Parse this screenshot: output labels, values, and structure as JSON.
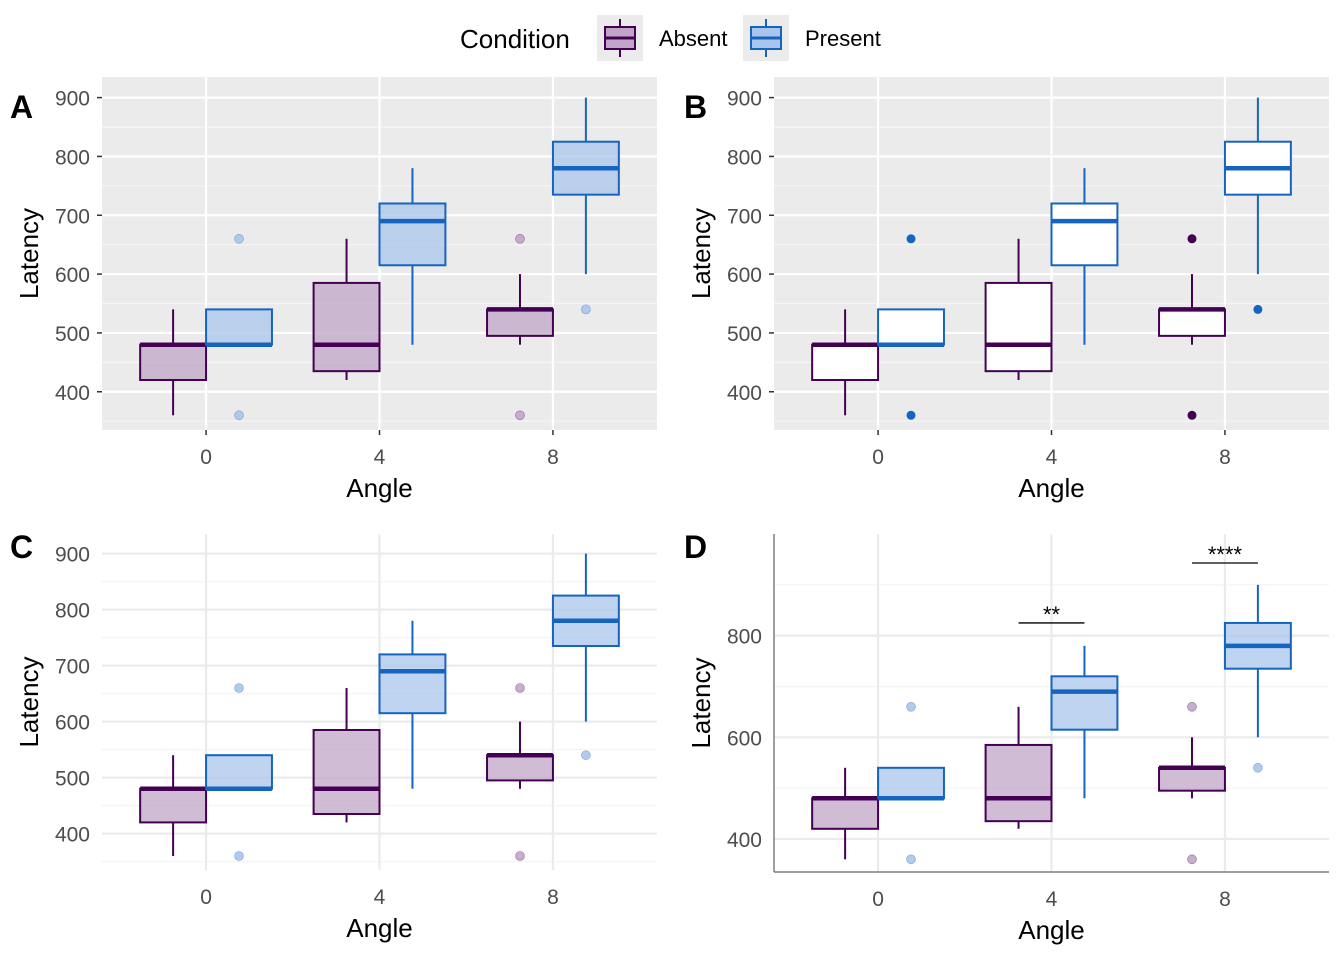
{
  "legend": {
    "title": "Condition",
    "items": [
      {
        "label": "Absent",
        "stroke": "#440154",
        "fill": "#C0A5C6"
      },
      {
        "label": "Present",
        "stroke": "#1565C0",
        "fill": "#A9C5EB"
      }
    ]
  },
  "panel_labels": [
    "A",
    "B",
    "C",
    "D"
  ],
  "chart_data": [
    {
      "type": "boxplot",
      "panel": "A",
      "theme": "grey-background",
      "xlabel": "Angle",
      "ylabel": "Latency",
      "categories": [
        "0",
        "4",
        "8"
      ],
      "ylim": [
        335,
        935
      ],
      "yticks": [
        400,
        500,
        600,
        700,
        800,
        900
      ],
      "grid": true,
      "box_fill": true,
      "series": [
        {
          "name": "Absent",
          "boxes": [
            {
              "x": "0",
              "min": 360,
              "q1": 420,
              "median": 480,
              "q3": 480,
              "max": 540,
              "outliers": []
            },
            {
              "x": "4",
              "min": 420,
              "q1": 435,
              "median": 480,
              "q3": 585,
              "max": 660,
              "outliers": []
            },
            {
              "x": "8",
              "min": 480,
              "q1": 495,
              "median": 540,
              "q3": 540,
              "max": 600,
              "outliers": [
                660,
                360
              ]
            }
          ]
        },
        {
          "name": "Present",
          "boxes": [
            {
              "x": "0",
              "min": 480,
              "q1": 480,
              "median": 480,
              "q3": 540,
              "max": 540,
              "outliers": [
                660,
                360
              ]
            },
            {
              "x": "4",
              "min": 480,
              "q1": 615,
              "median": 690,
              "q3": 720,
              "max": 780,
              "outliers": []
            },
            {
              "x": "8",
              "min": 600,
              "q1": 735,
              "median": 780,
              "q3": 825,
              "max": 900,
              "outliers": [
                540
              ]
            }
          ]
        }
      ]
    },
    {
      "type": "boxplot",
      "panel": "B",
      "theme": "grey-background",
      "xlabel": "Angle",
      "ylabel": "Latency",
      "categories": [
        "0",
        "4",
        "8"
      ],
      "ylim": [
        335,
        935
      ],
      "yticks": [
        400,
        500,
        600,
        700,
        800,
        900
      ],
      "grid": true,
      "box_fill": false,
      "series": [
        {
          "name": "Absent",
          "boxes": [
            {
              "x": "0",
              "min": 360,
              "q1": 420,
              "median": 480,
              "q3": 480,
              "max": 540,
              "outliers": []
            },
            {
              "x": "4",
              "min": 420,
              "q1": 435,
              "median": 480,
              "q3": 585,
              "max": 660,
              "outliers": []
            },
            {
              "x": "8",
              "min": 480,
              "q1": 495,
              "median": 540,
              "q3": 540,
              "max": 600,
              "outliers": [
                660,
                360
              ]
            }
          ]
        },
        {
          "name": "Present",
          "boxes": [
            {
              "x": "0",
              "min": 480,
              "q1": 480,
              "median": 480,
              "q3": 540,
              "max": 540,
              "outliers": [
                660,
                360
              ]
            },
            {
              "x": "4",
              "min": 480,
              "q1": 615,
              "median": 690,
              "q3": 720,
              "max": 780,
              "outliers": []
            },
            {
              "x": "8",
              "min": 600,
              "q1": 735,
              "median": 780,
              "q3": 825,
              "max": 900,
              "outliers": [
                540
              ]
            }
          ]
        }
      ]
    },
    {
      "type": "boxplot",
      "panel": "C",
      "theme": "minimal",
      "xlabel": "Angle",
      "ylabel": "Latency",
      "categories": [
        "0",
        "4",
        "8"
      ],
      "ylim": [
        335,
        935
      ],
      "yticks": [
        400,
        500,
        600,
        700,
        800,
        900
      ],
      "grid": true,
      "box_fill": true,
      "series": [
        {
          "name": "Absent",
          "boxes": [
            {
              "x": "0",
              "min": 360,
              "q1": 420,
              "median": 480,
              "q3": 480,
              "max": 540,
              "outliers": []
            },
            {
              "x": "4",
              "min": 420,
              "q1": 435,
              "median": 480,
              "q3": 585,
              "max": 660,
              "outliers": []
            },
            {
              "x": "8",
              "min": 480,
              "q1": 495,
              "median": 540,
              "q3": 540,
              "max": 600,
              "outliers": [
                660,
                360
              ]
            }
          ]
        },
        {
          "name": "Present",
          "boxes": [
            {
              "x": "0",
              "min": 480,
              "q1": 480,
              "median": 480,
              "q3": 540,
              "max": 540,
              "outliers": [
                660,
                360
              ]
            },
            {
              "x": "4",
              "min": 480,
              "q1": 615,
              "median": 690,
              "q3": 720,
              "max": 780,
              "outliers": []
            },
            {
              "x": "8",
              "min": 600,
              "q1": 735,
              "median": 780,
              "q3": 825,
              "max": 900,
              "outliers": [
                540
              ]
            }
          ]
        }
      ]
    },
    {
      "type": "boxplot",
      "panel": "D",
      "theme": "minimal-axes",
      "xlabel": "Angle",
      "ylabel": "Latency",
      "categories": [
        "0",
        "4",
        "8"
      ],
      "ylim": [
        335,
        1000
      ],
      "yticks": [
        400,
        600,
        800
      ],
      "grid": true,
      "box_fill": true,
      "series": [
        {
          "name": "Absent",
          "boxes": [
            {
              "x": "0",
              "min": 360,
              "q1": 420,
              "median": 480,
              "q3": 480,
              "max": 540,
              "outliers": []
            },
            {
              "x": "4",
              "min": 420,
              "q1": 435,
              "median": 480,
              "q3": 585,
              "max": 660,
              "outliers": []
            },
            {
              "x": "8",
              "min": 480,
              "q1": 495,
              "median": 540,
              "q3": 540,
              "max": 600,
              "outliers": [
                660,
                360
              ]
            }
          ]
        },
        {
          "name": "Present",
          "boxes": [
            {
              "x": "0",
              "min": 480,
              "q1": 480,
              "median": 480,
              "q3": 540,
              "max": 540,
              "outliers": [
                660,
                360
              ]
            },
            {
              "x": "4",
              "min": 480,
              "q1": 615,
              "median": 690,
              "q3": 720,
              "max": 780,
              "outliers": []
            },
            {
              "x": "8",
              "min": 600,
              "q1": 735,
              "median": 780,
              "q3": 825,
              "max": 900,
              "outliers": [
                540
              ]
            }
          ]
        }
      ],
      "annotations": [
        {
          "x": "4",
          "label": "**",
          "y": 825
        },
        {
          "x": "8",
          "label": "****",
          "y": 943
        }
      ]
    }
  ]
}
